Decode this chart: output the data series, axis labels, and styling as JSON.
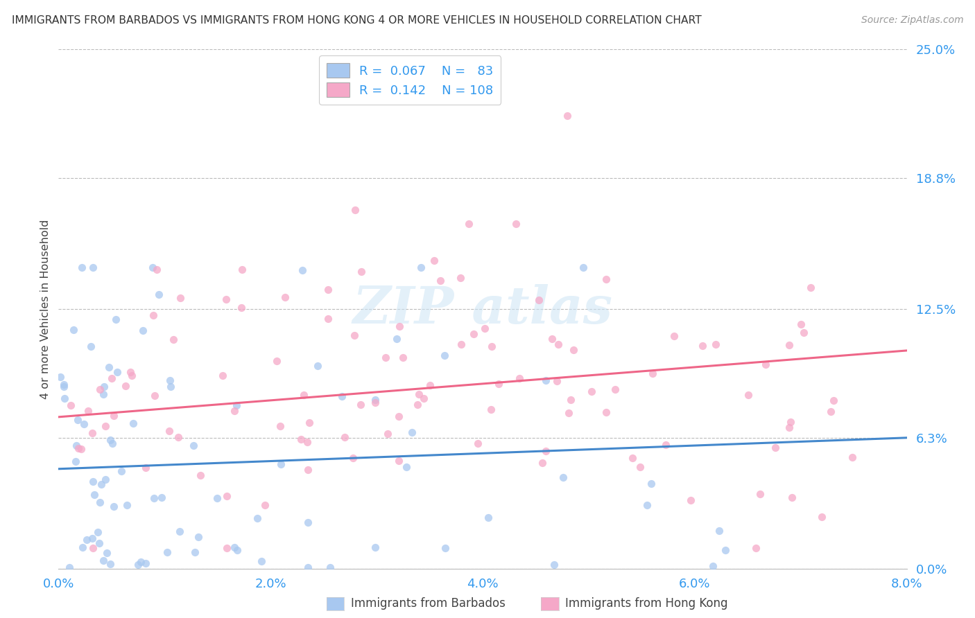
{
  "title": "IMMIGRANTS FROM BARBADOS VS IMMIGRANTS FROM HONG KONG 4 OR MORE VEHICLES IN HOUSEHOLD CORRELATION CHART",
  "source": "Source: ZipAtlas.com",
  "ylabel": "4 or more Vehicles in Household",
  "barbados_color": "#a8c8f0",
  "hongkong_color": "#f5a8c8",
  "barbados_line_color": "#4488cc",
  "hongkong_line_color": "#ee6688",
  "R_barbados": 0.067,
  "N_barbados": 83,
  "R_hongkong": 0.142,
  "N_hongkong": 108,
  "xlim": [
    0.0,
    0.08
  ],
  "ylim": [
    0.0,
    0.25
  ],
  "xtick_labels": [
    "0.0%",
    "2.0%",
    "4.0%",
    "6.0%",
    "8.0%"
  ],
  "xtick_values": [
    0.0,
    0.02,
    0.04,
    0.06,
    0.08
  ],
  "ytick_labels": [
    "0.0%",
    "6.3%",
    "12.5%",
    "18.8%",
    "25.0%"
  ],
  "ytick_values": [
    0.0,
    0.063,
    0.125,
    0.188,
    0.25
  ],
  "legend_label_barbados": "Immigrants from Barbados",
  "legend_label_hongkong": "Immigrants from Hong Kong",
  "background_color": "#ffffff",
  "blue_line_y0": 0.048,
  "blue_line_y1": 0.063,
  "pink_line_y0": 0.073,
  "pink_line_y1": 0.105
}
